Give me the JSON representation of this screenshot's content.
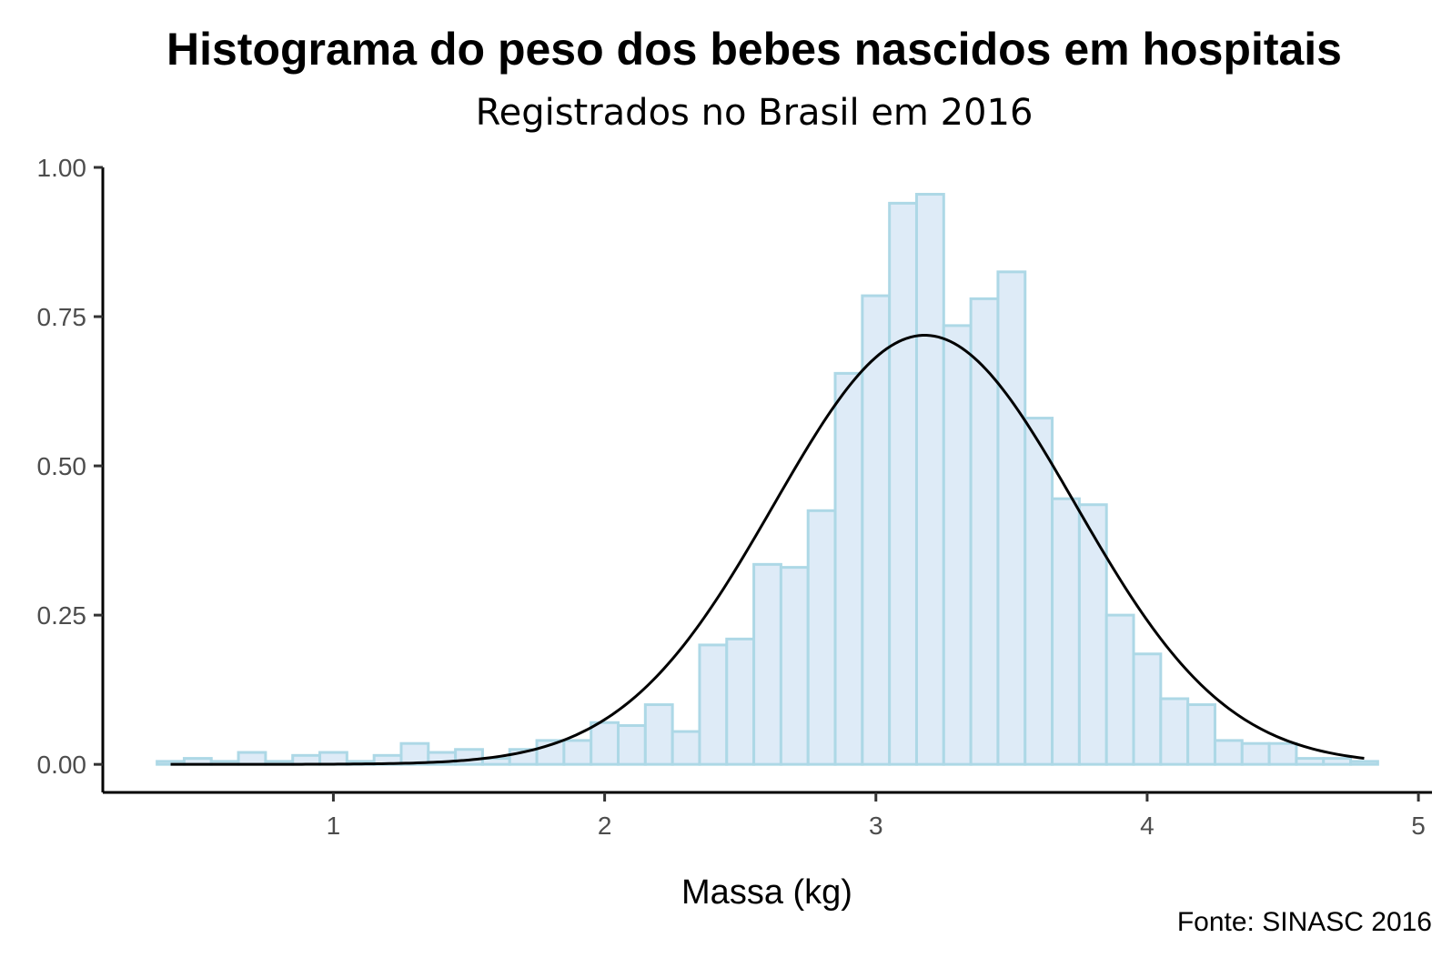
{
  "chart_data": {
    "type": "bar",
    "title": "Histograma do peso dos bebes nascidos em hospitais",
    "subtitle": "Registrados no Brasil em 2016",
    "xlabel": "Massa (kg)",
    "ylabel": "",
    "caption": "Fonte: SINASC 2016",
    "xlim": [
      0.15,
      5.05
    ],
    "ylim": [
      -0.047,
      1.0
    ],
    "x_ticks": [
      1,
      2,
      3,
      4,
      5
    ],
    "x_tick_labels": [
      "1",
      "2",
      "3",
      "4",
      "5"
    ],
    "y_ticks": [
      0,
      0.25,
      0.5,
      0.75,
      1.0
    ],
    "y_tick_labels": [
      "0.00",
      "0.25",
      "0.50",
      "0.75",
      "1.00"
    ],
    "grid": false,
    "colors": {
      "bar_fill": "#deebf7",
      "bar_stroke": "#add8e6",
      "curve": "#000000"
    },
    "histogram": {
      "bin_start": 0.35,
      "bin_width": 0.1,
      "values": [
        0.005,
        0.01,
        0.005,
        0.02,
        0.005,
        0.015,
        0.02,
        0.005,
        0.015,
        0.035,
        0.02,
        0.025,
        0.01,
        0.025,
        0.04,
        0.04,
        0.07,
        0.065,
        0.1,
        0.055,
        0.2,
        0.21,
        0.335,
        0.33,
        0.425,
        0.655,
        0.785,
        0.94,
        0.955,
        0.735,
        0.78,
        0.825,
        0.58,
        0.445,
        0.435,
        0.25,
        0.185,
        0.11,
        0.1,
        0.04,
        0.035,
        0.035,
        0.01,
        0.01,
        0.005
      ]
    },
    "normal_curve": {
      "mean": 3.18,
      "sd": 0.555,
      "x_range": [
        0.4,
        4.8
      ]
    }
  }
}
